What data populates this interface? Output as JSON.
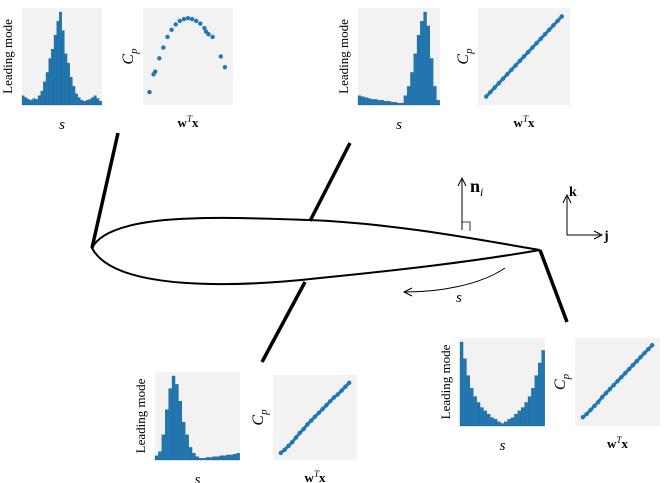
{
  "panels": [
    {
      "hist": {
        "ylabel": "Leading mode",
        "xlabel": "s",
        "ylim": [
          0,
          1
        ],
        "values": [
          0.1,
          0.08,
          0.06,
          0.05,
          0.07,
          0.06,
          0.1,
          0.15,
          0.25,
          0.35,
          0.5,
          0.6,
          0.75,
          0.9,
          1,
          0.8,
          0.55,
          0.45,
          0.3,
          0.2,
          0.12,
          0.08,
          0.05,
          0.04,
          0.05,
          0.06,
          0.08,
          0.1,
          0.07,
          0.04
        ]
      },
      "scatter": {
        "ylabel": [
          "C",
          "p"
        ],
        "xlabel": [
          "w",
          "T",
          "x"
        ],
        "xlim": [
          0,
          1
        ],
        "ylim": [
          0,
          1
        ],
        "x": [
          0.03,
          0.08,
          0.1,
          0.15,
          0.2,
          0.25,
          0.3,
          0.35,
          0.4,
          0.45,
          0.5,
          0.55,
          0.6,
          0.65,
          0.7,
          0.72,
          0.75,
          0.8,
          0.9,
          0.95
        ],
        "y": [
          0.1,
          0.3,
          0.33,
          0.48,
          0.6,
          0.72,
          0.8,
          0.86,
          0.9,
          0.92,
          0.93,
          0.92,
          0.9,
          0.87,
          0.82,
          0.78,
          0.75,
          0.72,
          0.5,
          0.38
        ]
      }
    },
    {
      "hist": {
        "ylabel": "Leading mode",
        "xlabel": "s",
        "ylim": [
          0,
          1
        ],
        "values": [
          0.1,
          0.09,
          0.08,
          0.07,
          0.06,
          0.06,
          0.05,
          0.05,
          0.04,
          0.04,
          0.03,
          0.03,
          0.02,
          0.02,
          0.1,
          0.2,
          0.35,
          0.55,
          0.75,
          0.9,
          1,
          0.85,
          0.5,
          0.2,
          0.05
        ]
      },
      "scatter": {
        "ylabel": [
          "C",
          "p"
        ],
        "xlabel": [
          "w",
          "T",
          "x"
        ],
        "xlim": [
          0,
          1
        ],
        "ylim": [
          0,
          1
        ],
        "x": [
          0.05,
          0.1,
          0.15,
          0.2,
          0.25,
          0.3,
          0.35,
          0.4,
          0.45,
          0.5,
          0.55,
          0.6,
          0.65,
          0.7,
          0.75,
          0.8,
          0.85,
          0.9,
          0.95
        ],
        "y": [
          0.05,
          0.1,
          0.15,
          0.2,
          0.25,
          0.3,
          0.35,
          0.4,
          0.45,
          0.5,
          0.55,
          0.6,
          0.65,
          0.7,
          0.75,
          0.8,
          0.85,
          0.9,
          0.95
        ]
      }
    },
    {
      "hist": {
        "ylabel": "Leading mode",
        "xlabel": "s",
        "ylim": [
          0,
          1
        ],
        "values": [
          0.05,
          0.1,
          0.3,
          0.6,
          0.85,
          1,
          0.9,
          0.7,
          0.45,
          0.3,
          0.15,
          0.08,
          0.04,
          0.02,
          0.02,
          0.03,
          0.03,
          0.04,
          0.04,
          0.05,
          0.05,
          0.06,
          0.06,
          0.07,
          0.08
        ]
      },
      "scatter": {
        "ylabel": [
          "C",
          "p"
        ],
        "xlabel": [
          "w",
          "T",
          "x"
        ],
        "xlim": [
          0,
          1
        ],
        "ylim": [
          0,
          1
        ],
        "x": [
          0.05,
          0.1,
          0.15,
          0.2,
          0.25,
          0.3,
          0.35,
          0.4,
          0.45,
          0.5,
          0.55,
          0.6,
          0.65,
          0.7,
          0.75,
          0.8,
          0.85,
          0.9,
          0.95
        ],
        "y": [
          0.04,
          0.08,
          0.13,
          0.18,
          0.24,
          0.3,
          0.35,
          0.41,
          0.46,
          0.51,
          0.56,
          0.61,
          0.66,
          0.71,
          0.76,
          0.8,
          0.85,
          0.9,
          0.95
        ]
      }
    },
    {
      "hist": {
        "ylabel": "Leading mode",
        "xlabel": "s",
        "ylim": [
          0,
          1
        ],
        "values": [
          1,
          0.8,
          0.6,
          0.45,
          0.35,
          0.28,
          0.22,
          0.18,
          0.14,
          0.1,
          0.08,
          0.05,
          0.03,
          0.05,
          0.08,
          0.1,
          0.14,
          0.18,
          0.22,
          0.28,
          0.35,
          0.45,
          0.6,
          0.75,
          0.9
        ]
      },
      "scatter": {
        "ylabel": [
          "C",
          "p"
        ],
        "xlabel": [
          "w",
          "T",
          "x"
        ],
        "xlim": [
          0,
          1
        ],
        "ylim": [
          0,
          1
        ],
        "x": [
          0.05,
          0.1,
          0.15,
          0.2,
          0.25,
          0.3,
          0.35,
          0.4,
          0.45,
          0.5,
          0.55,
          0.6,
          0.65,
          0.7,
          0.75,
          0.8,
          0.85,
          0.9,
          0.95
        ],
        "y": [
          0.06,
          0.1,
          0.15,
          0.2,
          0.25,
          0.31,
          0.36,
          0.41,
          0.46,
          0.51,
          0.56,
          0.61,
          0.66,
          0.71,
          0.76,
          0.81,
          0.86,
          0.91,
          0.96
        ]
      }
    }
  ],
  "labels": {
    "normal": [
      "n",
      "i"
    ],
    "k": "k",
    "j": "j",
    "s": "s"
  }
}
